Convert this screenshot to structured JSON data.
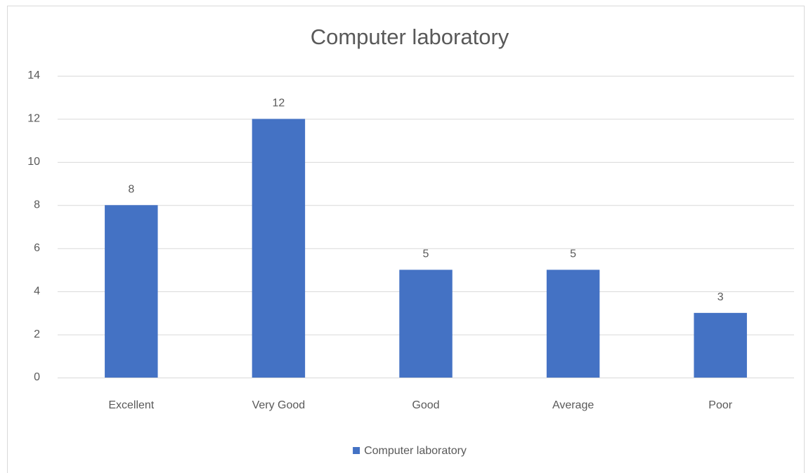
{
  "chart_data": {
    "type": "bar",
    "title": "Computer laboratory",
    "categories": [
      "Excellent",
      "Very Good",
      "Good",
      "Average",
      "Poor"
    ],
    "series": [
      {
        "name": "Computer laboratory",
        "color": "#4472c4",
        "values": [
          8,
          12,
          5,
          5,
          3
        ]
      }
    ],
    "ylim": [
      0,
      14
    ],
    "yticks": [
      0,
      2,
      4,
      6,
      8,
      10,
      12,
      14
    ],
    "grid": true,
    "legend": "bottom",
    "data_labels": true
  }
}
